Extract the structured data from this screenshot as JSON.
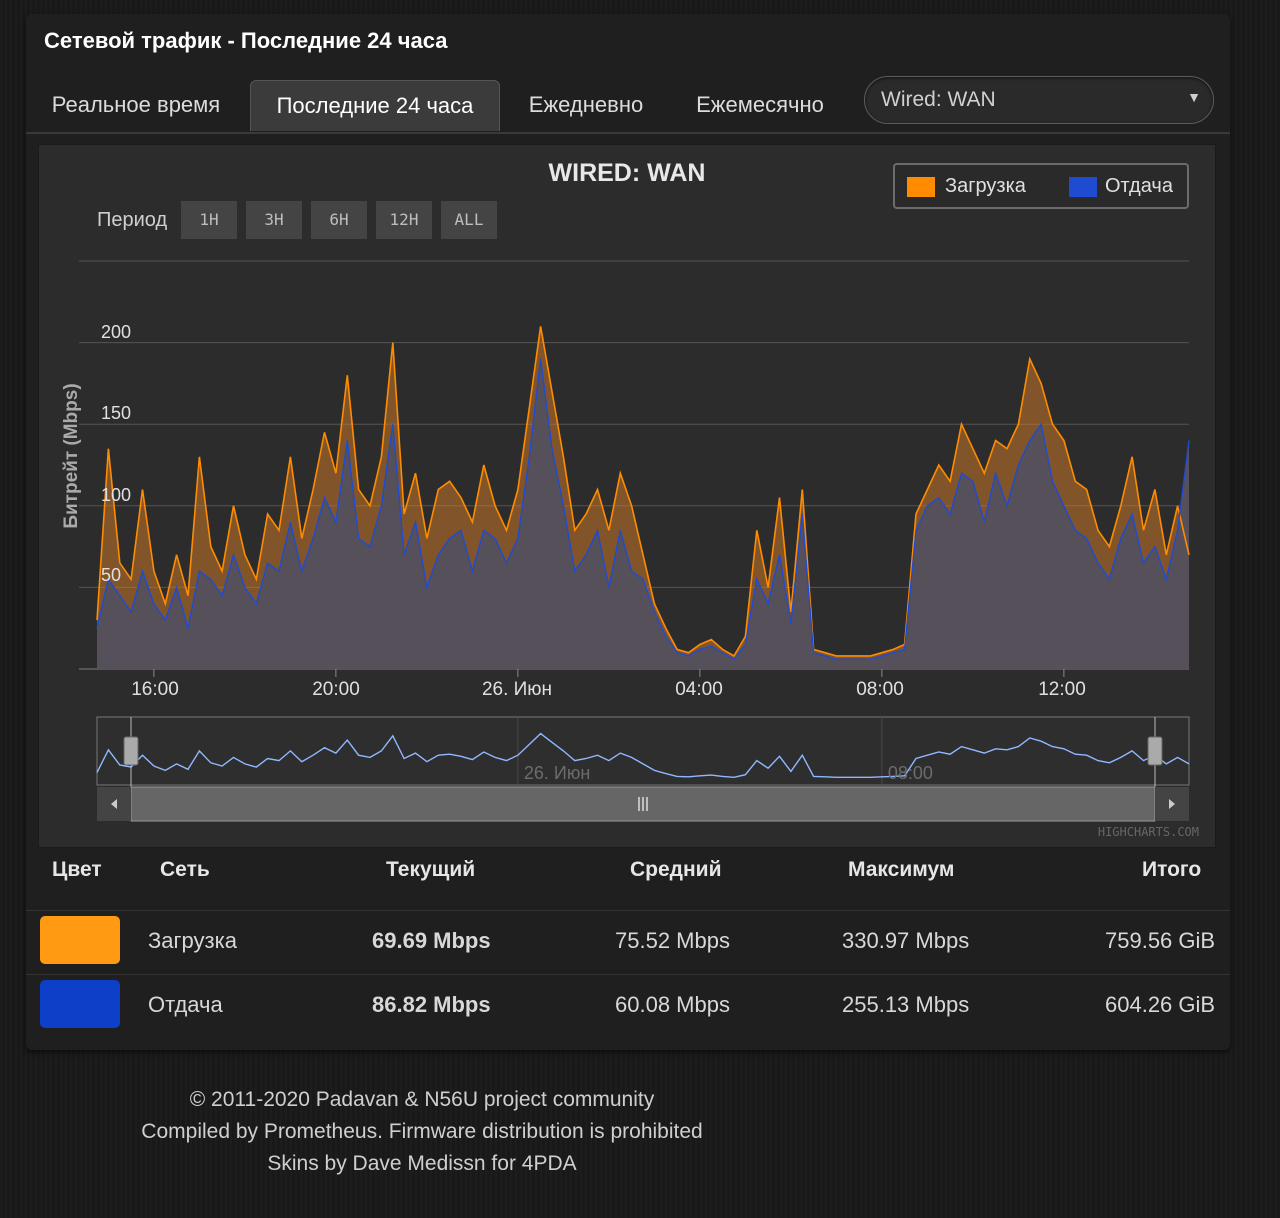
{
  "panel": {
    "title": "Сетевой трафик - Последние 24 часа"
  },
  "tabs": [
    {
      "label": "Реальное время"
    },
    {
      "label": "Последние 24 часа",
      "active": true
    },
    {
      "label": "Ежедневно"
    },
    {
      "label": "Ежемесячно"
    }
  ],
  "interface_select": {
    "value": "Wired: WAN"
  },
  "chart": {
    "period_label": "Период",
    "period_buttons": [
      "1H",
      "3H",
      "6H",
      "12H",
      "ALL"
    ],
    "credits": "HIGHCHARTS.COM",
    "navigator_labels": [
      "26. Июн",
      "08:00"
    ]
  },
  "chart_data": {
    "type": "area",
    "title": "WIRED: WAN",
    "ylabel": "Битрейт (Mbps)",
    "yticks": [
      "50",
      "100",
      "150",
      "200"
    ],
    "ylim": [
      0,
      250
    ],
    "xticks": [
      "16:00",
      "20:00",
      "26. Июн",
      "04:00",
      "08:00",
      "12:00"
    ],
    "xlim_hours": [
      14.75,
      38.75
    ],
    "grid": true,
    "legend_position": "top-right",
    "series": [
      {
        "name": "Загрузка",
        "color": "#ff8c00",
        "x": [
          14.75,
          15.0,
          15.25,
          15.5,
          15.75,
          16.0,
          16.25,
          16.5,
          16.75,
          17.0,
          17.25,
          17.5,
          17.75,
          18.0,
          18.25,
          18.5,
          18.75,
          19.0,
          19.25,
          19.5,
          19.75,
          20.0,
          20.25,
          20.5,
          20.75,
          21.0,
          21.25,
          21.5,
          21.75,
          22.0,
          22.25,
          22.5,
          22.75,
          23.0,
          23.25,
          23.5,
          23.75,
          24.0,
          24.25,
          24.5,
          24.75,
          25.0,
          25.25,
          25.5,
          25.75,
          26.0,
          26.25,
          26.5,
          26.75,
          27.0,
          27.25,
          27.5,
          27.75,
          28.0,
          28.25,
          28.5,
          28.75,
          29.0,
          29.25,
          29.5,
          29.75,
          30.0,
          30.25,
          30.5,
          30.75,
          31.0,
          31.25,
          31.5,
          31.75,
          32.0,
          32.25,
          32.5,
          32.75,
          33.0,
          33.25,
          33.5,
          33.75,
          34.0,
          34.25,
          34.5,
          34.75,
          35.0,
          35.25,
          35.5,
          35.75,
          36.0,
          36.25,
          36.5,
          36.75,
          37.0,
          37.25,
          37.5,
          37.75,
          38.0,
          38.25,
          38.5,
          38.75
        ],
        "values": [
          30,
          135,
          65,
          55,
          110,
          60,
          40,
          70,
          45,
          130,
          75,
          60,
          100,
          70,
          55,
          95,
          85,
          130,
          80,
          110,
          145,
          120,
          180,
          110,
          100,
          130,
          200,
          95,
          120,
          80,
          110,
          115,
          105,
          90,
          125,
          100,
          85,
          110,
          160,
          210,
          170,
          130,
          85,
          95,
          110,
          85,
          120,
          100,
          70,
          40,
          25,
          12,
          10,
          15,
          18,
          12,
          8,
          20,
          85,
          50,
          105,
          35,
          110,
          12,
          10,
          8,
          8,
          8,
          8,
          10,
          12,
          15,
          95,
          110,
          125,
          115,
          150,
          135,
          120,
          140,
          135,
          150,
          190,
          175,
          150,
          140,
          115,
          110,
          85,
          75,
          100,
          130,
          85,
          110,
          70,
          100,
          70
        ]
      },
      {
        "name": "Отдача",
        "color": "#1e4bd2",
        "x": [
          14.75,
          15.0,
          15.25,
          15.5,
          15.75,
          16.0,
          16.25,
          16.5,
          16.75,
          17.0,
          17.25,
          17.5,
          17.75,
          18.0,
          18.25,
          18.5,
          18.75,
          19.0,
          19.25,
          19.5,
          19.75,
          20.0,
          20.25,
          20.5,
          20.75,
          21.0,
          21.25,
          21.5,
          21.75,
          22.0,
          22.25,
          22.5,
          22.75,
          23.0,
          23.25,
          23.5,
          23.75,
          24.0,
          24.25,
          24.5,
          24.75,
          25.0,
          25.25,
          25.5,
          25.75,
          26.0,
          26.25,
          26.5,
          26.75,
          27.0,
          27.25,
          27.5,
          27.75,
          28.0,
          28.25,
          28.5,
          28.75,
          29.0,
          29.25,
          29.5,
          29.75,
          30.0,
          30.25,
          30.5,
          30.75,
          31.0,
          31.25,
          31.5,
          31.75,
          32.0,
          32.25,
          32.5,
          32.75,
          33.0,
          33.25,
          33.5,
          33.75,
          34.0,
          34.25,
          34.5,
          34.75,
          35.0,
          35.25,
          35.5,
          35.75,
          36.0,
          36.25,
          36.5,
          36.75,
          37.0,
          37.25,
          37.5,
          37.75,
          38.0,
          38.25,
          38.5,
          38.75
        ],
        "values": [
          25,
          55,
          45,
          35,
          60,
          40,
          30,
          50,
          25,
          60,
          55,
          45,
          70,
          50,
          40,
          65,
          60,
          90,
          60,
          80,
          105,
          90,
          140,
          80,
          75,
          100,
          150,
          70,
          90,
          50,
          70,
          80,
          85,
          60,
          85,
          80,
          65,
          80,
          130,
          190,
          135,
          100,
          60,
          70,
          85,
          50,
          85,
          60,
          55,
          35,
          20,
          10,
          8,
          12,
          14,
          10,
          6,
          15,
          55,
          40,
          70,
          28,
          95,
          10,
          8,
          6,
          6,
          6,
          6,
          8,
          10,
          12,
          85,
          100,
          105,
          95,
          120,
          115,
          90,
          120,
          100,
          125,
          140,
          150,
          115,
          100,
          85,
          80,
          65,
          55,
          80,
          95,
          65,
          75,
          55,
          85,
          140
        ]
      }
    ]
  },
  "stats": {
    "headers": {
      "color": "Цвет",
      "network": "Сеть",
      "current": "Текущий",
      "average": "Средний",
      "max": "Максимум",
      "total": "Итого"
    },
    "rows": [
      {
        "color": "#ff9a12",
        "network": "Загрузка",
        "current": "69.69 Mbps",
        "average": "75.52 Mbps",
        "max": "330.97 Mbps",
        "total": "759.56 GiB"
      },
      {
        "color": "#0d3fc9",
        "network": "Отдача",
        "current": "86.82 Mbps",
        "average": "60.08 Mbps",
        "max": "255.13 Mbps",
        "total": "604.26 GiB"
      }
    ]
  },
  "footer": {
    "lines": [
      "© 2011-2020 Padavan & N56U project community",
      "Compiled by Prometheus. Firmware distribution is prohibited",
      "Skins by Dave Medissn for 4PDA"
    ]
  }
}
